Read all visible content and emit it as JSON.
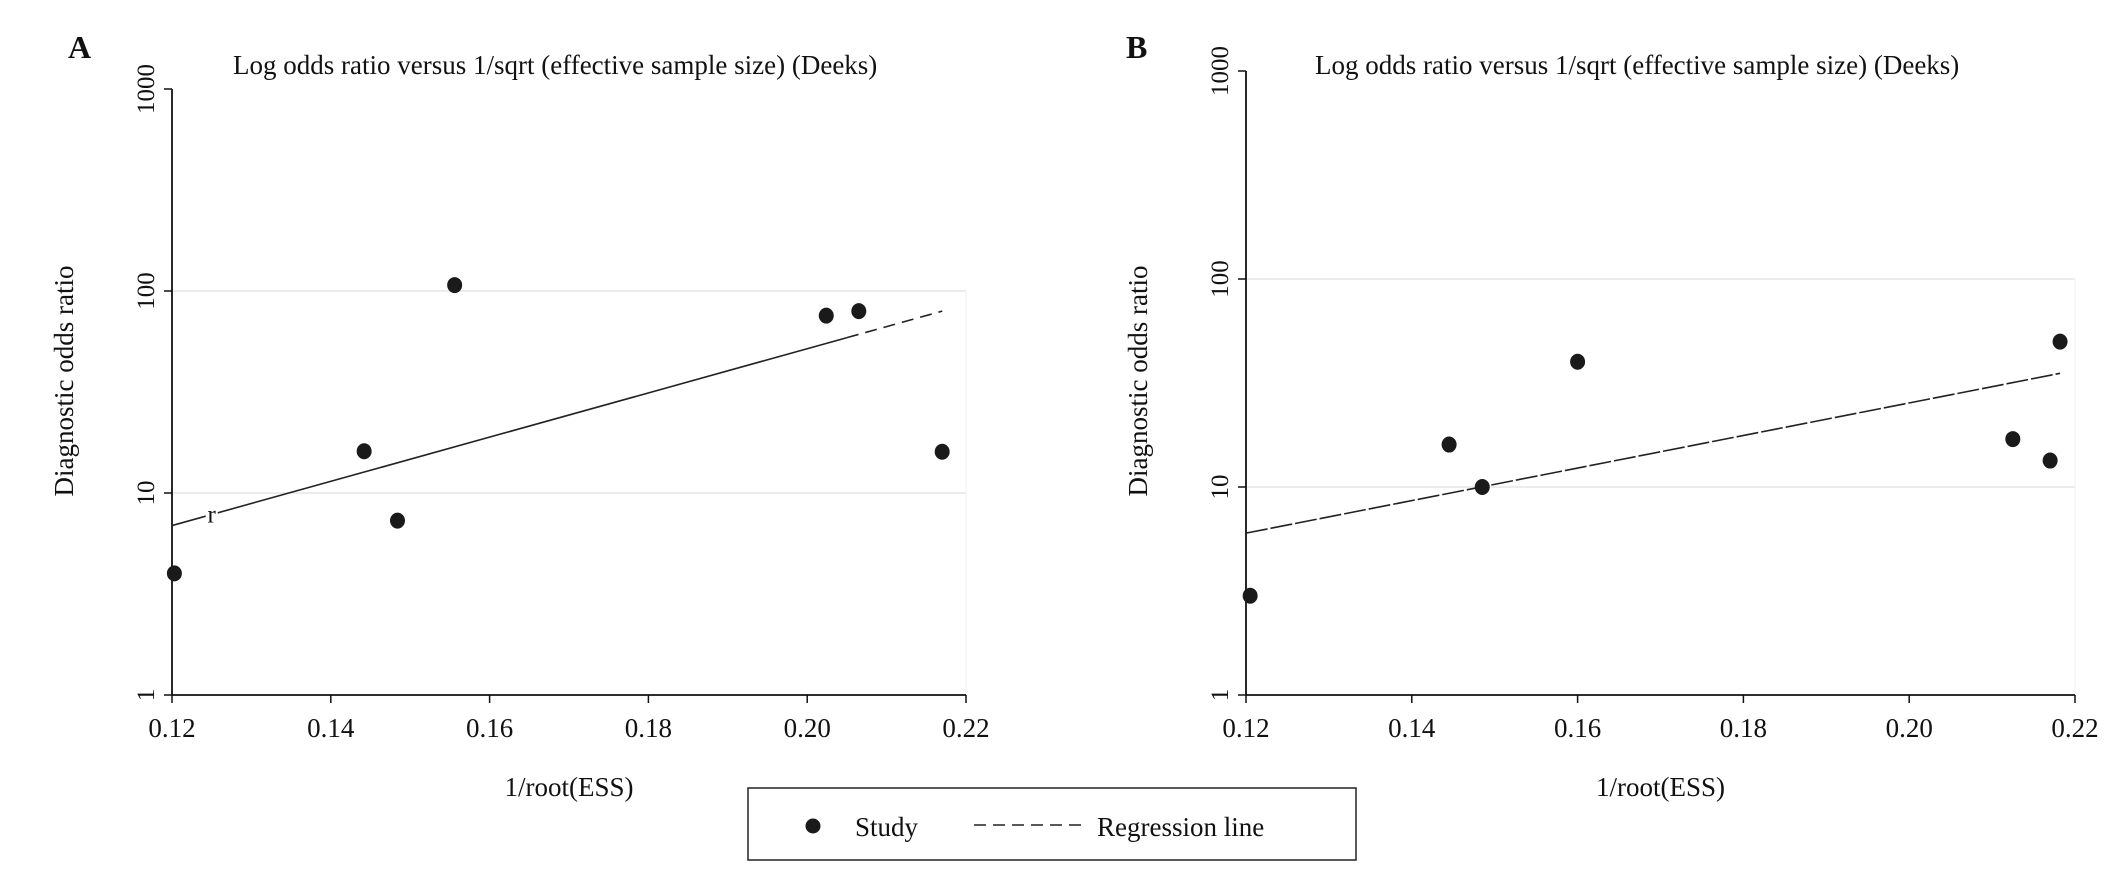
{
  "chart_data": [
    {
      "type": "scatter",
      "panel_label": "A",
      "title": "Log odds ratio versus 1/sqrt (effective sample size) (Deeks)",
      "xlabel": "1/root(ESS)",
      "ylabel": "Diagnostic odds ratio",
      "xlim": [
        0.12,
        0.22
      ],
      "ylim": [
        1,
        1000
      ],
      "yscale": "log",
      "xticks": [
        "0.12",
        "0.14",
        "0.16",
        "0.18",
        "0.20",
        "0.22"
      ],
      "xtick_values": [
        0.12,
        0.14,
        0.16,
        0.18,
        0.2,
        0.22
      ],
      "yticks": [
        "1",
        "10",
        "100",
        "1000"
      ],
      "ytick_values": [
        1,
        10,
        100,
        1000
      ],
      "grid": "horizontal at 10 and 100",
      "points": [
        {
          "x": 0.1203,
          "y": 4.0
        },
        {
          "x": 0.1442,
          "y": 16.1
        },
        {
          "x": 0.1484,
          "y": 7.3
        },
        {
          "x": 0.1556,
          "y": 107
        },
        {
          "x": 0.2024,
          "y": 75.5
        },
        {
          "x": 0.2065,
          "y": 79.5
        },
        {
          "x": 0.217,
          "y": 16.0
        }
      ],
      "regression": {
        "x": [
          0.12,
          0.217
        ],
        "y": [
          6.9,
          79.5
        ]
      },
      "line_annotation": {
        "text": "r",
        "x": 0.125
      }
    },
    {
      "type": "scatter",
      "panel_label": "B",
      "title": "Log odds ratio versus 1/sqrt (effective sample size) (Deeks)",
      "xlabel": "1/root(ESS)",
      "ylabel": "Diagnostic odds ratio",
      "xlim": [
        0.12,
        0.22
      ],
      "ylim": [
        1,
        1000
      ],
      "yscale": "log",
      "xticks": [
        "0.12",
        "0.14",
        "0.16",
        "0.18",
        "0.20",
        "0.22"
      ],
      "xtick_values": [
        0.12,
        0.14,
        0.16,
        0.18,
        0.2,
        0.22
      ],
      "yticks": [
        "1",
        "10",
        "100",
        "1000"
      ],
      "ytick_values": [
        1,
        10,
        100,
        1000
      ],
      "grid": "horizontal at 10 and 100",
      "points": [
        {
          "x": 0.1205,
          "y": 3.0
        },
        {
          "x": 0.1445,
          "y": 16.0
        },
        {
          "x": 0.1485,
          "y": 10.0
        },
        {
          "x": 0.16,
          "y": 40.0
        },
        {
          "x": 0.2125,
          "y": 17.0
        },
        {
          "x": 0.217,
          "y": 13.4
        },
        {
          "x": 0.2182,
          "y": 50.0
        }
      ],
      "regression": {
        "x": [
          0.12,
          0.2182
        ],
        "y": [
          6.0,
          35.2
        ]
      }
    }
  ],
  "legend": {
    "placement": "bottom-center",
    "items": [
      {
        "label": "Study",
        "marker": "dot"
      },
      {
        "label": "Regression line",
        "marker": "dashed-line"
      }
    ]
  }
}
